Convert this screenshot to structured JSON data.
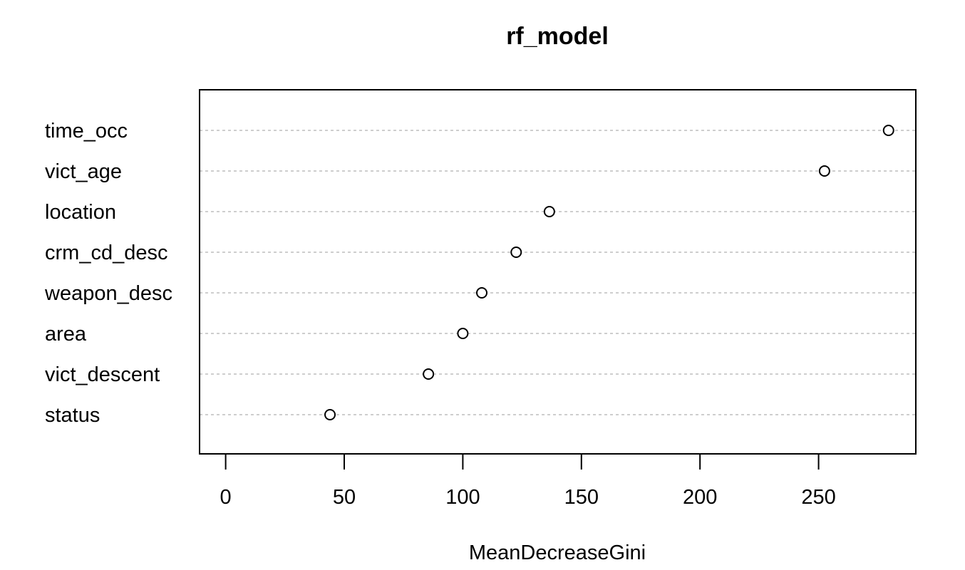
{
  "chart_data": {
    "type": "scatter",
    "title": "rf_model",
    "xlabel": "MeanDecreaseGini",
    "ylabel": "",
    "categories": [
      "time_occ",
      "vict_age",
      "location",
      "crm_cd_desc",
      "weapon_desc",
      "area",
      "vict_descent",
      "status"
    ],
    "values": [
      279.5,
      252.5,
      136.5,
      122.5,
      108,
      100,
      85.5,
      44
    ],
    "xlim": [
      -11,
      291
    ],
    "xticks": [
      0,
      50,
      100,
      150,
      200,
      250
    ],
    "grid": "horizontal dotted lines per variable",
    "marker": "open circle",
    "colors": {
      "points": "#000000",
      "grid": "#bdbdbd"
    }
  }
}
